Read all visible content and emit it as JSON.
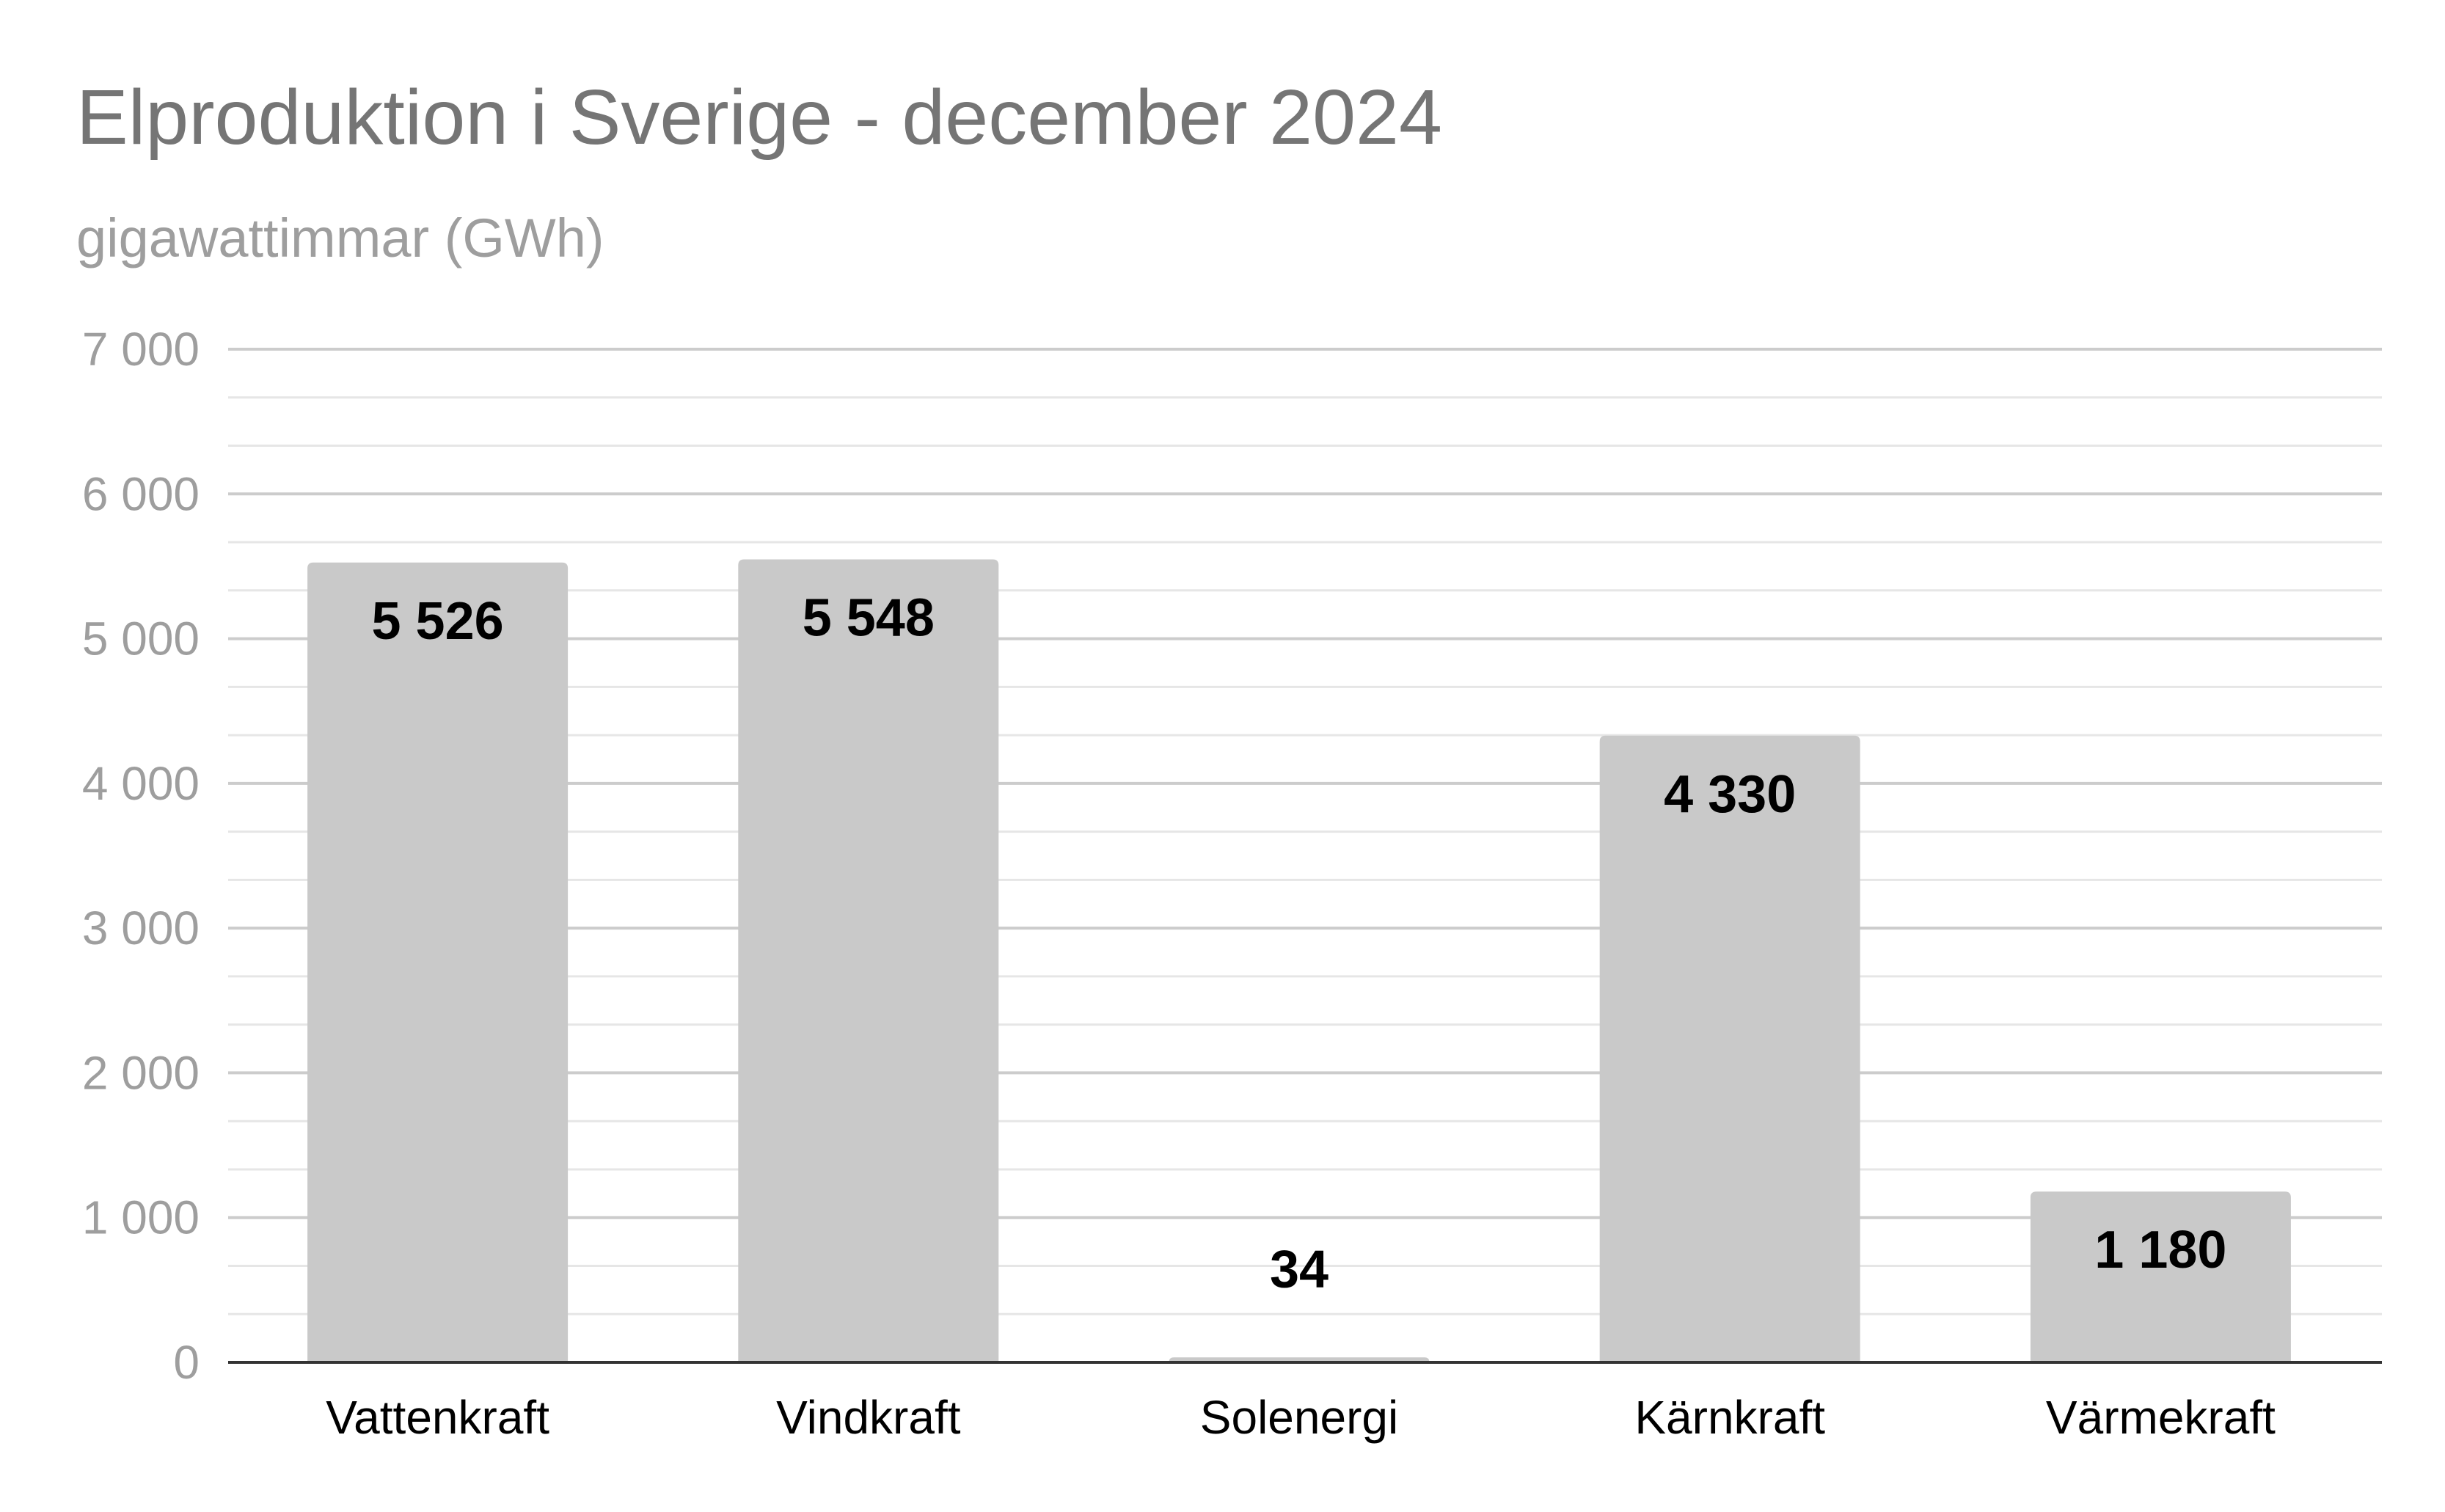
{
  "chart_data": {
    "type": "bar",
    "title": "Elproduktion i Sverige - december 2024",
    "subtitle": "gigawattimmar (GWh)",
    "categories": [
      "Vattenkraft",
      "Vindkraft",
      "Solenergi",
      "Kärnkraft",
      "Värmekraft"
    ],
    "values": [
      5526,
      5548,
      34,
      4330,
      1180
    ],
    "data_labels": [
      "5 526",
      "5 548",
      "34",
      "4 330",
      "1 180"
    ],
    "ylim": [
      0,
      7000
    ],
    "yticks": [
      0,
      1000,
      2000,
      3000,
      4000,
      5000,
      6000,
      7000
    ],
    "ytick_labels": [
      "0",
      "1 000",
      "2 000",
      "3 000",
      "4 000",
      "5 000",
      "6 000",
      "7 000"
    ],
    "minor_gridlines": true,
    "grid": true,
    "legend": "none",
    "bar_color": "#c9c9c9",
    "major_grid_color": "#cccccc",
    "minor_grid_color": "#e6e6e6",
    "axis_color": "#333333"
  }
}
